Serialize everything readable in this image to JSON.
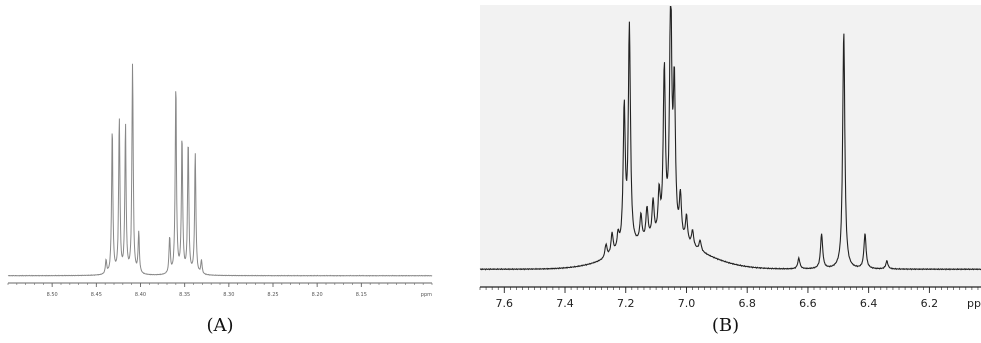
{
  "panels": [
    {
      "caption": "(A)",
      "chart_data": {
        "type": "line",
        "title": "",
        "xlabel": "",
        "ylabel": "",
        "x_unit": "ppm",
        "x_reversed": true,
        "xlim": [
          8.55,
          8.07
        ],
        "x_ticks": [
          8.5,
          8.45,
          8.4,
          8.35,
          8.3,
          8.25,
          8.2,
          8.15
        ],
        "tick_labels": [
          "8.50",
          "8.45",
          "8.40",
          "8.35",
          "8.30",
          "8.25",
          "8.20",
          "8.15"
        ],
        "ylim": [
          0,
          1
        ],
        "grid": false,
        "line_color": "#888888",
        "series": [
          {
            "peaks": [
              {
                "x": 8.439,
                "h": 0.06
              },
              {
                "x": 8.432,
                "h": 0.64
              },
              {
                "x": 8.424,
                "h": 0.68
              },
              {
                "x": 8.417,
                "h": 0.65
              },
              {
                "x": 8.409,
                "h": 0.92
              },
              {
                "x": 8.402,
                "h": 0.18
              },
              {
                "x": 8.367,
                "h": 0.16
              },
              {
                "x": 8.36,
                "h": 0.83
              },
              {
                "x": 8.353,
                "h": 0.6
              },
              {
                "x": 8.346,
                "h": 0.58
              },
              {
                "x": 8.338,
                "h": 0.53
              },
              {
                "x": 8.331,
                "h": 0.06
              }
            ],
            "baseline": 0.01
          }
        ]
      }
    },
    {
      "caption": "(B)",
      "chart_data": {
        "type": "line",
        "title": "",
        "xlabel": "",
        "ylabel": "",
        "x_unit": "pp",
        "x_reversed": true,
        "xlim": [
          7.68,
          6.03
        ],
        "x_ticks": [
          7.6,
          7.4,
          7.2,
          7.0,
          6.8,
          6.6,
          6.4,
          6.2
        ],
        "tick_labels": [
          "7.6",
          "7.4",
          "7.2",
          "7.0",
          "6.8",
          "6.6",
          "6.4",
          "6.2"
        ],
        "ylim": [
          0,
          1
        ],
        "grid": false,
        "background": "#f2f2f2",
        "line_color": "#222222",
        "series": [
          {
            "peaks": [
              {
                "x": 7.265,
                "h": 0.05
              },
              {
                "x": 7.245,
                "h": 0.08
              },
              {
                "x": 7.225,
                "h": 0.06
              },
              {
                "x": 7.205,
                "h": 0.52
              },
              {
                "x": 7.188,
                "h": 0.82
              },
              {
                "x": 7.15,
                "h": 0.1
              },
              {
                "x": 7.13,
                "h": 0.12
              },
              {
                "x": 7.11,
                "h": 0.14
              },
              {
                "x": 7.09,
                "h": 0.16
              },
              {
                "x": 7.073,
                "h": 0.62
              },
              {
                "x": 7.052,
                "h": 0.93
              },
              {
                "x": 7.04,
                "h": 0.55
              },
              {
                "x": 7.02,
                "h": 0.16
              },
              {
                "x": 7.0,
                "h": 0.1
              },
              {
                "x": 6.98,
                "h": 0.06
              },
              {
                "x": 6.955,
                "h": 0.04
              },
              {
                "x": 6.63,
                "h": 0.04
              },
              {
                "x": 6.555,
                "h": 0.13
              },
              {
                "x": 6.482,
                "h": 0.89
              },
              {
                "x": 6.412,
                "h": 0.13
              },
              {
                "x": 6.34,
                "h": 0.03
              }
            ],
            "hump": {
              "center": 7.08,
              "width": 0.18,
              "height": 0.1
            },
            "baseline": 0.04
          }
        ]
      }
    }
  ]
}
